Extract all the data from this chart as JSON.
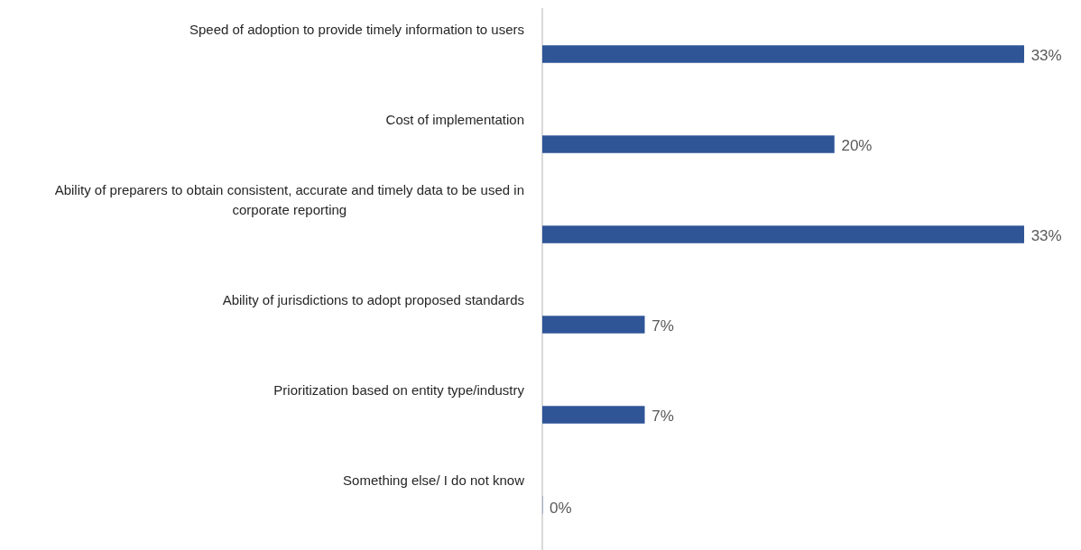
{
  "chart_data": {
    "type": "bar",
    "orientation": "horizontal",
    "categories": [
      "Speed of adoption to provide timely information to users",
      "Cost of implementation",
      "Ability of preparers to obtain consistent, accurate and timely data to be used in corporate reporting",
      "Ability of jurisdictions to adopt proposed standards",
      "Prioritization based on entity type/industry",
      "Something else/ I do not know"
    ],
    "values": [
      33,
      20,
      33,
      7,
      7,
      0
    ],
    "value_labels": [
      "33%",
      "20%",
      "33%",
      "7%",
      "7%",
      "0%"
    ],
    "color": "#2f5597",
    "grid": false,
    "legend": false
  }
}
